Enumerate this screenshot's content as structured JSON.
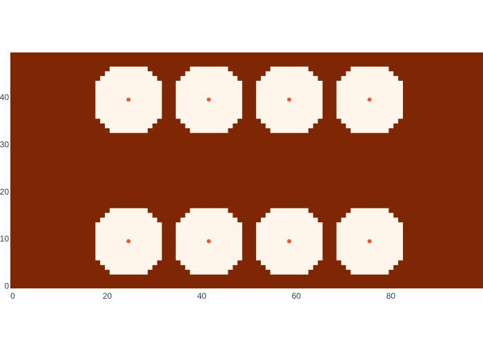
{
  "chart_data": {
    "type": "heatmap",
    "title": "",
    "xlabel": "",
    "ylabel": "",
    "xlim": [
      -0.5,
      99.5
    ],
    "ylim": [
      -0.5,
      49.5
    ],
    "x_ticks": [
      0,
      20,
      40,
      60,
      80
    ],
    "y_ticks": [
      0,
      10,
      20,
      30,
      40
    ],
    "grid": false,
    "legend": "none",
    "background_color": "#7f2704",
    "disk_color": "#fff5eb",
    "marker_color": "#ef553b",
    "disk_radius": 7.5,
    "centers": [
      {
        "x": 24.5,
        "y": 39.5
      },
      {
        "x": 41.5,
        "y": 39.5
      },
      {
        "x": 58.5,
        "y": 39.5
      },
      {
        "x": 75.5,
        "y": 39.5
      },
      {
        "x": 24.5,
        "y": 9.5
      },
      {
        "x": 41.5,
        "y": 9.5
      },
      {
        "x": 58.5,
        "y": 9.5
      },
      {
        "x": 75.5,
        "y": 9.5
      }
    ]
  }
}
